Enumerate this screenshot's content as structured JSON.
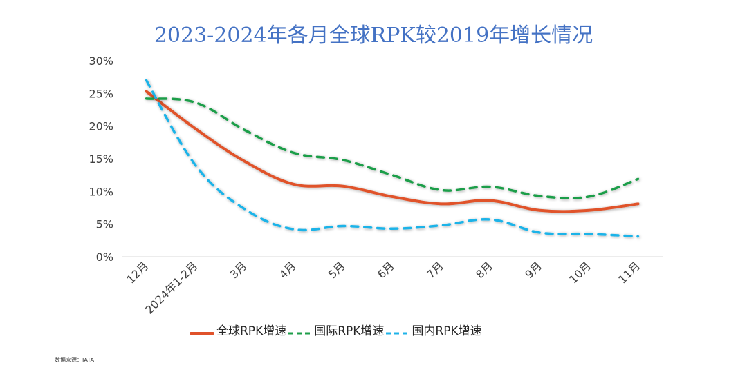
{
  "title": "2023-2024年各月全球RPK较2019年增长情况",
  "source": "数据来源：IATA",
  "chart_data": {
    "type": "line",
    "title": "2023-2024年各月全球RPK较2019年增长情况",
    "categories": [
      "12月",
      "2024年1-2月",
      "3月",
      "4月",
      "5月",
      "6月",
      "7月",
      "8月",
      "9月",
      "10月",
      "11月"
    ],
    "yticks": [
      "0%",
      "5%",
      "10%",
      "15%",
      "20%",
      "25%",
      "30%"
    ],
    "ylim": [
      0,
      30
    ],
    "grid": false,
    "legend_position": "bottom",
    "series": [
      {
        "name": "全球RPK增速",
        "color": "#e0522b",
        "dash": "solid",
        "values": [
          25.3,
          19.6,
          14.6,
          11.1,
          10.8,
          9.2,
          8.1,
          8.6,
          7.1,
          7.1,
          8.1
        ]
      },
      {
        "name": "国际RPK增速",
        "color": "#1e9e4a",
        "dash": "dashed",
        "values": [
          24.2,
          23.6,
          19.4,
          15.9,
          14.8,
          12.5,
          10.2,
          10.7,
          9.3,
          9.2,
          11.9
        ]
      },
      {
        "name": "国内RPK增速",
        "color": "#1fb3e8",
        "dash": "dashed",
        "values": [
          27.0,
          14.0,
          7.3,
          4.2,
          4.7,
          4.3,
          4.8,
          5.7,
          3.7,
          3.5,
          3.1
        ]
      }
    ]
  }
}
